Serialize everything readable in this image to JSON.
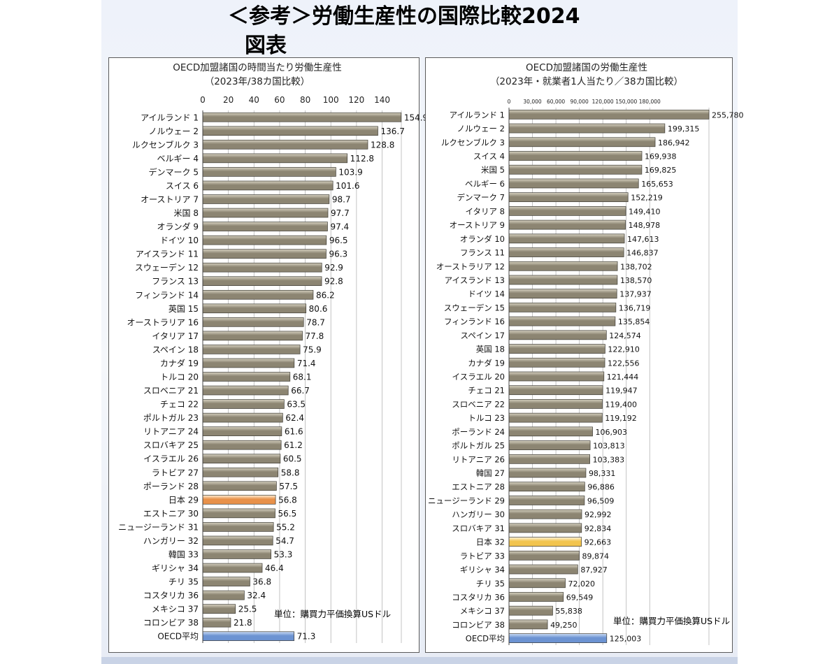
{
  "slide": {
    "title": "＜参考＞労働生産性の国際比較2024",
    "subtitle": "図表"
  },
  "colors": {
    "bar": "#8c8572",
    "bar_light": "#d6d1c0",
    "japan_left": "#e8914a",
    "japan_right": "#f2c44e",
    "oecd_avg": "#6c93d2"
  },
  "chart_data": [
    {
      "type": "bar",
      "orientation": "horizontal",
      "title": "OECD加盟諸国の時間当たり労働生産性",
      "subtitle": "（2023年/38カ国比較）",
      "unit_note": "単位：購買力平価換算USドル",
      "xlim": [
        0,
        155
      ],
      "ticks": [
        "0",
        "20",
        "40",
        "60",
        "80",
        "100",
        "120",
        "140"
      ],
      "tick_values": [
        0,
        20,
        40,
        60,
        80,
        100,
        120,
        140
      ],
      "categories": [
        "アイルランド 1",
        "ノルウェー 2",
        "ルクセンブルク 3",
        "ベルギー 4",
        "デンマーク 5",
        "スイス 6",
        "オーストリア 7",
        "米国 8",
        "オランダ 9",
        "ドイツ 10",
        "アイスランド 11",
        "スウェーデン 12",
        "フランス 13",
        "フィンランド 14",
        "英国 15",
        "オーストラリア 16",
        "イタリア 17",
        "スペイン 18",
        "カナダ 19",
        "トルコ 20",
        "スロベニア 21",
        "チェコ 22",
        "ポルトガル 23",
        "リトアニア 24",
        "スロバキア 25",
        "イスラエル 26",
        "ラトビア 27",
        "ポーランド 28",
        "日本 29",
        "エストニア 30",
        "ニュージーランド 31",
        "ハンガリー 32",
        "韓国 33",
        "ギリシャ 34",
        "チリ 35",
        "コスタリカ 36",
        "メキシコ 37",
        "コロンビア 38",
        "OECD平均"
      ],
      "values": [
        154.9,
        136.7,
        128.8,
        112.8,
        103.9,
        101.6,
        98.7,
        97.7,
        97.4,
        96.5,
        96.3,
        92.9,
        92.8,
        86.2,
        80.6,
        78.7,
        77.8,
        75.9,
        71.4,
        68.1,
        66.7,
        63.5,
        62.4,
        61.6,
        61.2,
        60.5,
        58.8,
        57.5,
        56.8,
        56.5,
        55.2,
        54.7,
        53.3,
        46.4,
        36.8,
        32.4,
        25.5,
        21.8,
        71.3
      ],
      "value_labels": [
        "154.9",
        "136.7",
        "128.8",
        "112.8",
        "103.9",
        "101.6",
        "98.7",
        "97.7",
        "97.4",
        "96.5",
        "96.3",
        "92.9",
        "92.8",
        "86.2",
        "80.6",
        "78.7",
        "77.8",
        "75.9",
        "71.4",
        "68.1",
        "66.7",
        "63.5",
        "62.4",
        "61.6",
        "61.2",
        "60.5",
        "58.8",
        "57.5",
        "56.8",
        "56.5",
        "55.2",
        "54.7",
        "53.3",
        "46.4",
        "36.8",
        "32.4",
        "25.5",
        "21.8",
        "71.3"
      ],
      "highlight": {
        "日本 29": "japan_left",
        "OECD平均": "oecd_avg"
      },
      "grid": true
    },
    {
      "type": "bar",
      "orientation": "horizontal",
      "title": "OECD加盟諸国の労働生産性",
      "subtitle": "（2023年・就業者1人当たり／38カ国比較）",
      "unit_note": "単位：購買力平価換算USドル",
      "xlim": [
        0,
        255780
      ],
      "ticks": [
        "0",
        "30,000",
        "60,000",
        "90,000",
        "120,000",
        "150,000",
        "180,000"
      ],
      "tick_values": [
        0,
        30000,
        60000,
        90000,
        120000,
        150000,
        180000
      ],
      "categories": [
        "アイルランド 1",
        "ノルウェー 2",
        "ルクセンブルク 3",
        "スイス 4",
        "米国 5",
        "ベルギー 6",
        "デンマーク 7",
        "イタリア 8",
        "オーストリア 9",
        "オランダ 10",
        "フランス 11",
        "オーストラリア 12",
        "アイスランド 13",
        "ドイツ 14",
        "スウェーデン 15",
        "フィンランド 16",
        "スペイン 17",
        "英国 18",
        "カナダ 19",
        "イスラエル 20",
        "チェコ 21",
        "スロベニア 22",
        "トルコ 23",
        "ポーランド 24",
        "ポルトガル 25",
        "リトアニア 26",
        "韓国 27",
        "エストニア 28",
        "ニュージーランド 29",
        "ハンガリー 30",
        "スロバキア 31",
        "日本 32",
        "ラトビア 33",
        "ギリシャ 34",
        "チリ 35",
        "コスタリカ 36",
        "メキシコ 37",
        "コロンビア 38",
        "OECD平均"
      ],
      "values": [
        255780,
        199315,
        186942,
        169938,
        169825,
        165653,
        152219,
        149410,
        148978,
        147613,
        146837,
        138702,
        138570,
        137937,
        136719,
        135854,
        124574,
        122910,
        122556,
        121444,
        119947,
        119400,
        119192,
        106903,
        103813,
        103383,
        98331,
        96886,
        96509,
        92992,
        92834,
        92663,
        89874,
        87927,
        72020,
        69549,
        55838,
        49250,
        125003
      ],
      "value_labels": [
        "255,780",
        "199,315",
        "186,942",
        "169,938",
        "169,825",
        "165,653",
        "152,219",
        "149,410",
        "148,978",
        "147,613",
        "146,837",
        "138,702",
        "138,570",
        "137,937",
        "136,719",
        "135,854",
        "124,574",
        "122,910",
        "122,556",
        "121,444",
        "119,947",
        "119,400",
        "119,192",
        "106,903",
        "103,813",
        "103,383",
        "98,331",
        "96,886",
        "96,509",
        "92,992",
        "92,834",
        "92,663",
        "89,874",
        "87,927",
        "72,020",
        "69,549",
        "55,838",
        "49,250",
        "125,003"
      ],
      "highlight": {
        "日本 32": "japan_right",
        "OECD平均": "oecd_avg"
      },
      "grid": true
    }
  ]
}
